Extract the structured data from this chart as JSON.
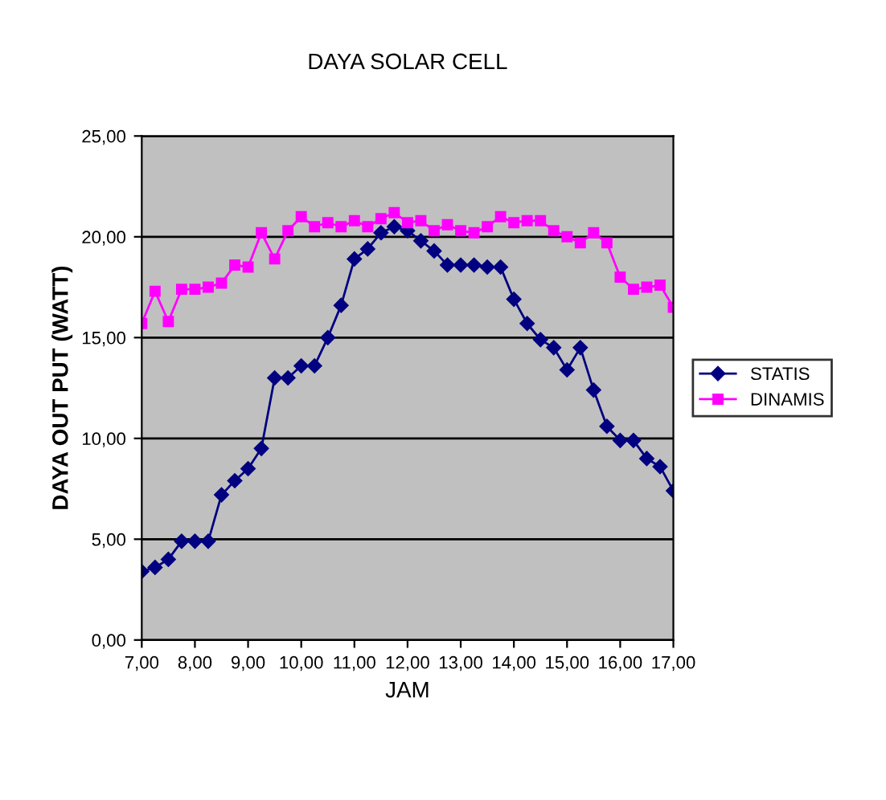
{
  "chart_data": {
    "type": "line",
    "title": "DAYA SOLAR CELL",
    "xlabel": "JAM",
    "ylabel": "DAYA OUT PUT (WATT)",
    "x": [
      7,
      7.25,
      7.5,
      7.75,
      8,
      8.25,
      8.5,
      8.75,
      9,
      9.25,
      9.5,
      9.75,
      10,
      10.25,
      10.5,
      10.75,
      11,
      11.25,
      11.5,
      11.75,
      12,
      12.25,
      12.5,
      12.75,
      13,
      13.25,
      13.5,
      13.75,
      14,
      14.25,
      14.5,
      14.75,
      15,
      15.25,
      15.5,
      15.75,
      16,
      16.25,
      16.5,
      16.75,
      17
    ],
    "series": [
      {
        "name": "STATIS",
        "color": "#000080",
        "marker": "diamond",
        "values": [
          3.4,
          3.6,
          4.0,
          4.9,
          4.9,
          4.9,
          7.2,
          7.9,
          8.5,
          9.5,
          13.0,
          13.0,
          13.6,
          13.6,
          15.0,
          16.6,
          18.9,
          19.4,
          20.2,
          20.5,
          20.3,
          19.8,
          19.3,
          18.6,
          18.6,
          18.6,
          18.5,
          18.5,
          16.9,
          15.7,
          14.9,
          14.5,
          13.4,
          14.5,
          12.4,
          10.6,
          9.9,
          9.9,
          9.0,
          8.6,
          7.4
        ]
      },
      {
        "name": "DINAMIS",
        "color": "#ff00ff",
        "marker": "square",
        "values": [
          15.7,
          17.3,
          15.8,
          17.4,
          17.4,
          17.5,
          17.7,
          18.6,
          18.5,
          20.2,
          18.9,
          20.3,
          21.0,
          20.5,
          20.7,
          20.5,
          20.8,
          20.5,
          20.9,
          21.2,
          20.7,
          20.8,
          20.3,
          20.6,
          20.3,
          20.2,
          20.5,
          21.0,
          20.7,
          20.8,
          20.8,
          20.3,
          20.0,
          19.7,
          20.2,
          19.7,
          18.0,
          17.4,
          17.5,
          17.6,
          16.5
        ]
      }
    ],
    "xlim": [
      7,
      17
    ],
    "xticks": [
      {
        "value": 7,
        "label": "7,00"
      },
      {
        "value": 8,
        "label": "8,00"
      },
      {
        "value": 9,
        "label": "9,00"
      },
      {
        "value": 10,
        "label": "10,00"
      },
      {
        "value": 11,
        "label": "11,00"
      },
      {
        "value": 12,
        "label": "12,00"
      },
      {
        "value": 13,
        "label": "13,00"
      },
      {
        "value": 14,
        "label": "14,00"
      },
      {
        "value": 15,
        "label": "15,00"
      },
      {
        "value": 16,
        "label": "16,00"
      },
      {
        "value": 17,
        "label": "17,00"
      }
    ],
    "ylim": [
      0,
      25
    ],
    "yticks": [
      {
        "value": 0,
        "label": "0,00"
      },
      {
        "value": 5,
        "label": "5,00"
      },
      {
        "value": 10,
        "label": "10,00"
      },
      {
        "value": 15,
        "label": "15,00"
      },
      {
        "value": 20,
        "label": "20,00"
      },
      {
        "value": 25,
        "label": "25,00"
      }
    ],
    "grid": "y",
    "legend": "right",
    "line_style": "solid"
  }
}
